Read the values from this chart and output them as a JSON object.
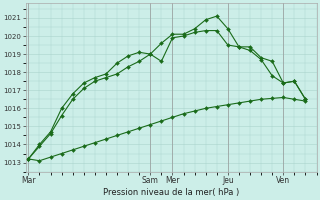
{
  "background_color": "#cceee8",
  "grid_color": "#aad4cc",
  "line_color": "#1a6b1a",
  "title": "Pression niveau de la mer( hPa )",
  "ylim": [
    1012.5,
    1021.8
  ],
  "yticks": [
    1013,
    1014,
    1015,
    1016,
    1017,
    1018,
    1019,
    1020,
    1021
  ],
  "day_labels": [
    "Mar",
    "Sam",
    "Mer",
    "Jeu",
    "Ven"
  ],
  "day_positions": [
    0.0,
    0.44,
    0.52,
    0.72,
    0.92
  ],
  "vline_positions": [
    0.0,
    0.44,
    0.52,
    0.72,
    0.92
  ],
  "series1_x": [
    0.0,
    0.04,
    0.08,
    0.12,
    0.16,
    0.2,
    0.24,
    0.28,
    0.32,
    0.36,
    0.4,
    0.44,
    0.48,
    0.52,
    0.56,
    0.6,
    0.64,
    0.68,
    0.72,
    0.76,
    0.8,
    0.84,
    0.88,
    0.92,
    0.96,
    1.0
  ],
  "series1_y": [
    1013.2,
    1013.1,
    1013.3,
    1013.5,
    1013.7,
    1013.9,
    1014.1,
    1014.3,
    1014.5,
    1014.7,
    1014.9,
    1015.1,
    1015.3,
    1015.5,
    1015.7,
    1015.85,
    1016.0,
    1016.1,
    1016.2,
    1016.3,
    1016.4,
    1016.5,
    1016.55,
    1016.6,
    1016.5,
    1016.4
  ],
  "series2_x": [
    0.0,
    0.04,
    0.08,
    0.12,
    0.16,
    0.2,
    0.24,
    0.28,
    0.32,
    0.36,
    0.4,
    0.44,
    0.48,
    0.52,
    0.56,
    0.6,
    0.64,
    0.68,
    0.72,
    0.76,
    0.8,
    0.84,
    0.88,
    0.92,
    0.96,
    1.0
  ],
  "series2_y": [
    1013.2,
    1013.9,
    1014.6,
    1015.6,
    1016.5,
    1017.1,
    1017.5,
    1017.7,
    1017.9,
    1018.3,
    1018.6,
    1019.0,
    1018.6,
    1019.9,
    1020.0,
    1020.2,
    1020.3,
    1020.3,
    1019.5,
    1019.4,
    1019.2,
    1018.7,
    1017.8,
    1017.4,
    1017.5,
    1016.5
  ],
  "series3_x": [
    0.0,
    0.04,
    0.08,
    0.12,
    0.16,
    0.2,
    0.24,
    0.28,
    0.32,
    0.36,
    0.4,
    0.44,
    0.48,
    0.52,
    0.56,
    0.6,
    0.64,
    0.68,
    0.72,
    0.76,
    0.8,
    0.84,
    0.88,
    0.92,
    0.96,
    1.0
  ],
  "series3_y": [
    1013.2,
    1014.0,
    1014.7,
    1016.0,
    1016.8,
    1017.4,
    1017.7,
    1017.9,
    1018.5,
    1018.9,
    1019.1,
    1019.0,
    1019.6,
    1020.1,
    1020.1,
    1020.4,
    1020.9,
    1021.1,
    1020.4,
    1019.4,
    1019.4,
    1018.8,
    1018.6,
    1017.4,
    1017.5,
    1016.5
  ]
}
